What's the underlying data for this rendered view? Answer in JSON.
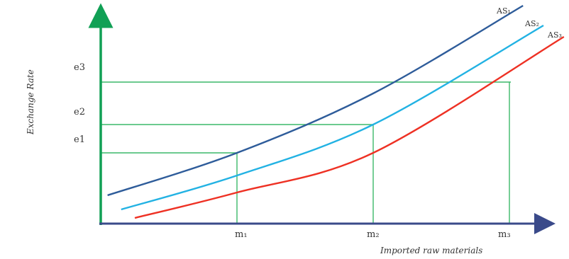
{
  "chart_data": {
    "type": "line",
    "xlabel": "Imported raw materials",
    "ylabel": "Exchange Rate",
    "x_ticks": [
      "m₁",
      "m₂",
      "m₃"
    ],
    "y_ticks": [
      "e1",
      "e2",
      "e3"
    ],
    "series": [
      {
        "name": "AS₁",
        "color": "#2e5c9a",
        "points": [
          [
            0.1,
            1.0
          ],
          [
            2.0,
            2.5
          ],
          [
            4.0,
            4.6
          ],
          [
            6.2,
            7.7
          ]
        ]
      },
      {
        "name": "AS₂",
        "color": "#22b2e3",
        "points": [
          [
            0.3,
            0.5
          ],
          [
            2.0,
            1.7
          ],
          [
            4.0,
            3.5
          ],
          [
            6.5,
            7.0
          ]
        ]
      },
      {
        "name": "AS₃",
        "color": "#ee3124",
        "points": [
          [
            0.5,
            0.2
          ],
          [
            2.0,
            1.1
          ],
          [
            4.0,
            2.5
          ],
          [
            6.8,
            6.6
          ]
        ]
      }
    ],
    "guides": [
      {
        "y_label": "e1",
        "y": 2.5,
        "x_label": "m₁",
        "x": 2.0
      },
      {
        "y_label": "e2",
        "y": 3.5,
        "x_label": "m₂",
        "x": 4.0
      },
      {
        "y_label": "e3",
        "y": 5.0,
        "x_label": "m₃",
        "x": 6.0
      }
    ],
    "grid": false,
    "axis_colors": {
      "y_axis": "#11a055",
      "x_axis": "#3a4a8a",
      "guides": "#3cb86a"
    }
  }
}
